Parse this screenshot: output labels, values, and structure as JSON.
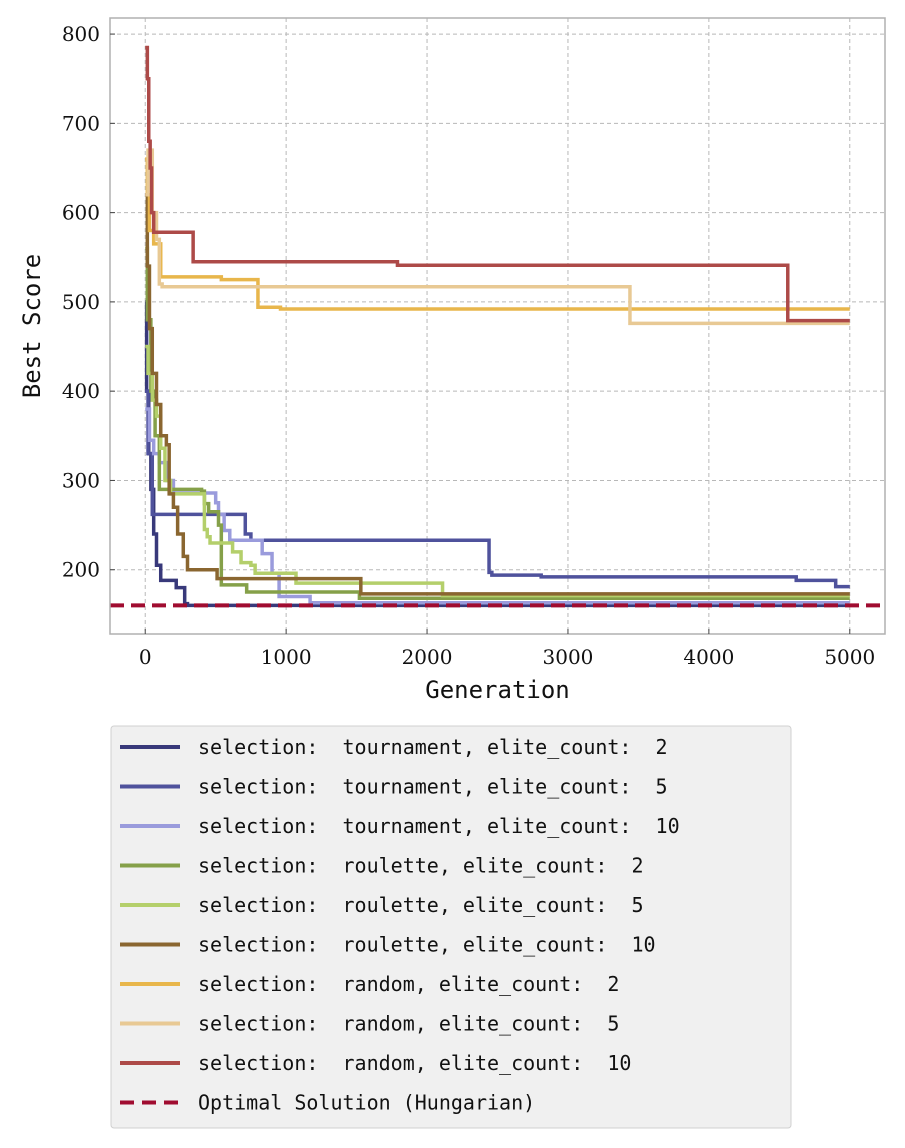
{
  "chart_data": {
    "type": "line",
    "title": "",
    "xlabel": "Generation",
    "ylabel": "Best Score",
    "xlim": [
      -250,
      5250
    ],
    "ylim": [
      128,
      818
    ],
    "xticks": [
      0,
      1000,
      2000,
      3000,
      4000,
      5000
    ],
    "yticks": [
      200,
      300,
      400,
      500,
      600,
      700,
      800
    ],
    "grid": true,
    "legend_placement": "below",
    "series": [
      {
        "name": "selection:  tournament, elite_count:  2",
        "color": "#38397a",
        "points": [
          [
            0,
            500
          ],
          [
            10,
            400
          ],
          [
            25,
            330
          ],
          [
            40,
            290
          ],
          [
            60,
            240
          ],
          [
            80,
            205
          ],
          [
            110,
            188
          ],
          [
            220,
            180
          ],
          [
            280,
            162
          ],
          [
            300,
            160
          ],
          [
            5000,
            160
          ]
        ]
      },
      {
        "name": "selection:  tournament, elite_count:  5",
        "color": "#4f529c",
        "points": [
          [
            0,
            400
          ],
          [
            20,
            330
          ],
          [
            50,
            262
          ],
          [
            700,
            262
          ],
          [
            710,
            240
          ],
          [
            750,
            233
          ],
          [
            2420,
            233
          ],
          [
            2440,
            197
          ],
          [
            2460,
            194
          ],
          [
            2800,
            194
          ],
          [
            2810,
            192
          ],
          [
            4600,
            192
          ],
          [
            4620,
            188
          ],
          [
            4880,
            188
          ],
          [
            4900,
            181
          ],
          [
            5000,
            181
          ]
        ]
      },
      {
        "name": "selection:  tournament, elite_count:  10",
        "color": "#9a9bdc",
        "points": [
          [
            0,
            380
          ],
          [
            30,
            345
          ],
          [
            60,
            330
          ],
          [
            100,
            320
          ],
          [
            150,
            300
          ],
          [
            200,
            286
          ],
          [
            480,
            286
          ],
          [
            500,
            275
          ],
          [
            520,
            262
          ],
          [
            560,
            244
          ],
          [
            600,
            233
          ],
          [
            800,
            233
          ],
          [
            830,
            218
          ],
          [
            900,
            196
          ],
          [
            940,
            196
          ],
          [
            950,
            170
          ],
          [
            1150,
            170
          ],
          [
            1170,
            163
          ],
          [
            5000,
            163
          ]
        ]
      },
      {
        "name": "selection:  roulette, elite_count:  2",
        "color": "#85a049",
        "points": [
          [
            0,
            560
          ],
          [
            15,
            480
          ],
          [
            40,
            400
          ],
          [
            70,
            350
          ],
          [
            100,
            290
          ],
          [
            400,
            288
          ],
          [
            420,
            274
          ],
          [
            450,
            265
          ],
          [
            520,
            250
          ],
          [
            540,
            183
          ],
          [
            700,
            183
          ],
          [
            720,
            175
          ],
          [
            1500,
            175
          ],
          [
            1520,
            168
          ],
          [
            5000,
            168
          ]
        ]
      },
      {
        "name": "selection:  roulette, elite_count:  5",
        "color": "#b4cf6b",
        "points": [
          [
            0,
            450
          ],
          [
            20,
            420
          ],
          [
            50,
            390
          ],
          [
            80,
            372
          ],
          [
            110,
            336
          ],
          [
            140,
            300
          ],
          [
            180,
            285
          ],
          [
            400,
            285
          ],
          [
            420,
            245
          ],
          [
            440,
            237
          ],
          [
            460,
            230
          ],
          [
            600,
            230
          ],
          [
            620,
            220
          ],
          [
            680,
            208
          ],
          [
            750,
            205
          ],
          [
            780,
            196
          ],
          [
            1050,
            196
          ],
          [
            1070,
            185
          ],
          [
            2100,
            185
          ],
          [
            2110,
            171
          ],
          [
            5000,
            171
          ]
        ]
      },
      {
        "name": "selection:  roulette, elite_count:  10",
        "color": "#8a6630",
        "points": [
          [
            0,
            620
          ],
          [
            15,
            540
          ],
          [
            30,
            470
          ],
          [
            50,
            420
          ],
          [
            80,
            385
          ],
          [
            110,
            350
          ],
          [
            150,
            340
          ],
          [
            170,
            285
          ],
          [
            200,
            270
          ],
          [
            230,
            240
          ],
          [
            270,
            215
          ],
          [
            300,
            200
          ],
          [
            500,
            200
          ],
          [
            510,
            190
          ],
          [
            1520,
            190
          ],
          [
            1530,
            173
          ],
          [
            5000,
            173
          ]
        ]
      },
      {
        "name": "selection:  random, elite_count:  2",
        "color": "#e8b64b",
        "points": [
          [
            0,
            660
          ],
          [
            15,
            620
          ],
          [
            30,
            580
          ],
          [
            60,
            565
          ],
          [
            110,
            528
          ],
          [
            530,
            528
          ],
          [
            540,
            525
          ],
          [
            790,
            525
          ],
          [
            800,
            494
          ],
          [
            950,
            494
          ],
          [
            960,
            492
          ],
          [
            5000,
            492
          ]
        ]
      },
      {
        "name": "selection:  random, elite_count:  5",
        "color": "#e8c994",
        "points": [
          [
            0,
            620
          ],
          [
            20,
            670
          ],
          [
            50,
            600
          ],
          [
            80,
            570
          ],
          [
            100,
            520
          ],
          [
            120,
            517
          ],
          [
            3430,
            517
          ],
          [
            3440,
            476
          ],
          [
            5000,
            476
          ]
        ]
      },
      {
        "name": "selection:  random, elite_count:  10",
        "color": "#ad4a48",
        "points": [
          [
            0,
            785
          ],
          [
            15,
            750
          ],
          [
            25,
            680
          ],
          [
            35,
            650
          ],
          [
            45,
            600
          ],
          [
            60,
            578
          ],
          [
            330,
            578
          ],
          [
            340,
            545
          ],
          [
            1780,
            545
          ],
          [
            1790,
            541
          ],
          [
            4550,
            541
          ],
          [
            4560,
            479
          ],
          [
            5000,
            479
          ]
        ]
      }
    ],
    "reference_line": {
      "name": "Optimal Solution (Hungarian)",
      "y": 160,
      "color": "#a00c30",
      "style": "dashed"
    }
  }
}
